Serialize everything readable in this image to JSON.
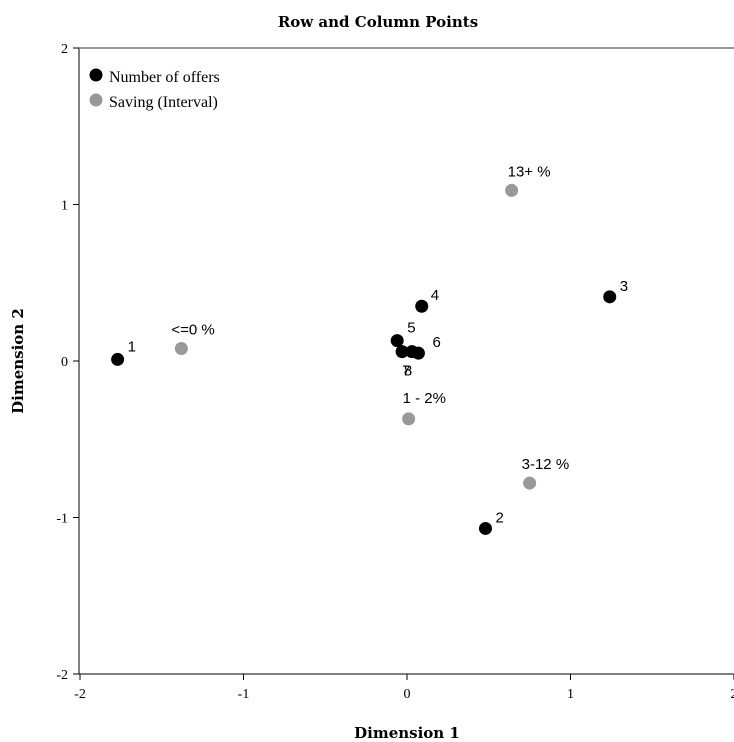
{
  "chart_data": {
    "type": "scatter",
    "title": "Row and Column Points",
    "xlabel": "Dimension 1",
    "ylabel": "Dimension 2",
    "xlim": [
      -2,
      2
    ],
    "ylim": [
      -2,
      2
    ],
    "xticks": [
      -2,
      -1,
      0,
      1,
      2
    ],
    "yticks": [
      -2,
      -1,
      0,
      1,
      2
    ],
    "xtick_labels": [
      "-2",
      "-1",
      "0",
      "1",
      "2"
    ],
    "ytick_labels": [
      "-2",
      "-1",
      "0",
      "1",
      "2"
    ],
    "legend_position": "top-left",
    "series": [
      {
        "name": "Number of offers",
        "color": "#000000",
        "points": [
          {
            "label": "1",
            "x": -1.77,
            "y": 0.01
          },
          {
            "label": "2",
            "x": 0.48,
            "y": -1.07
          },
          {
            "label": "3",
            "x": 1.24,
            "y": 0.41
          },
          {
            "label": "4",
            "x": 0.09,
            "y": 0.35
          },
          {
            "label": "5",
            "x": -0.06,
            "y": 0.13
          },
          {
            "label": "6",
            "x": 0.07,
            "y": 0.05
          },
          {
            "label": "7",
            "x": -0.03,
            "y": 0.06
          },
          {
            "label": "8",
            "x": 0.03,
            "y": 0.06
          }
        ]
      },
      {
        "name": "Saving (Interval)",
        "color": "#999999",
        "points": [
          {
            "label": "<=0 %",
            "x": -1.38,
            "y": 0.08
          },
          {
            "label": "13+ %",
            "x": 0.64,
            "y": 1.09
          },
          {
            "label": "1 - 2%",
            "x": 0.01,
            "y": -0.37
          },
          {
            "label": "3-12 %",
            "x": 0.75,
            "y": -0.78
          }
        ]
      }
    ]
  }
}
